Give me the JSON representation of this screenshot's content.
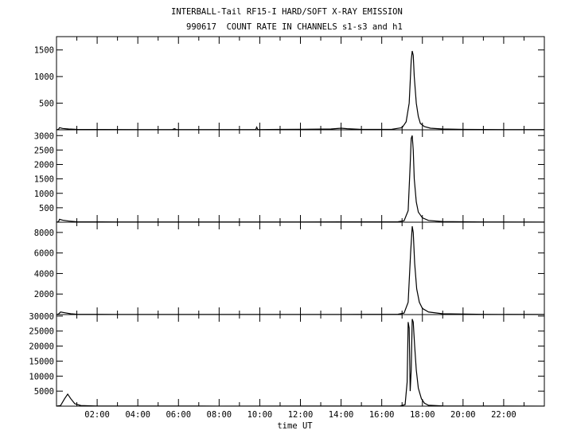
{
  "header": {
    "title_line1": "INTERBALL-Tail RF15-I HARD/SOFT X-RAY EMISSION",
    "title_line2": "990617  COUNT RATE IN CHANNELS s1-s3 and h1"
  },
  "chart_data": {
    "type": "line",
    "xlabel": "time UT",
    "xlim": [
      0,
      24
    ],
    "x_tick_labels": [
      "02:00",
      "04:00",
      "06:00",
      "08:00",
      "10:00",
      "12:00",
      "14:00",
      "16:00",
      "18:00",
      "20:00",
      "22:00"
    ],
    "x_tick_hours": [
      2,
      4,
      6,
      8,
      10,
      12,
      14,
      16,
      18,
      20,
      22
    ],
    "panels": [
      {
        "channel": "s1",
        "ylim": [
          0,
          1750
        ],
        "y_ticks": [
          500,
          1000,
          1500
        ],
        "y_tick_labels": [
          "500",
          "1000",
          "1500"
        ],
        "points": [
          [
            0,
            0
          ],
          [
            0.1,
            10
          ],
          [
            0.15,
            40
          ],
          [
            0.3,
            25
          ],
          [
            0.6,
            15
          ],
          [
            1,
            8
          ],
          [
            2,
            6
          ],
          [
            4,
            5
          ],
          [
            5.7,
            4
          ],
          [
            5.8,
            20
          ],
          [
            5.9,
            4
          ],
          [
            8,
            5
          ],
          [
            9.8,
            5
          ],
          [
            9.85,
            50
          ],
          [
            9.9,
            5
          ],
          [
            11,
            8
          ],
          [
            12,
            10
          ],
          [
            13.5,
            15
          ],
          [
            14,
            30
          ],
          [
            14.3,
            20
          ],
          [
            15,
            8
          ],
          [
            16.5,
            10
          ],
          [
            17.0,
            40
          ],
          [
            17.2,
            150
          ],
          [
            17.35,
            500
          ],
          [
            17.45,
            1300
          ],
          [
            17.5,
            1480
          ],
          [
            17.55,
            1400
          ],
          [
            17.6,
            1000
          ],
          [
            17.7,
            500
          ],
          [
            17.8,
            250
          ],
          [
            17.9,
            120
          ],
          [
            18.1,
            60
          ],
          [
            18.4,
            30
          ],
          [
            19,
            15
          ],
          [
            20,
            8
          ],
          [
            22,
            5
          ],
          [
            24,
            5
          ]
        ]
      },
      {
        "channel": "s2",
        "ylim": [
          0,
          3200
        ],
        "y_ticks": [
          500,
          1000,
          1500,
          2000,
          2500,
          3000
        ],
        "y_tick_labels": [
          "500",
          "1000",
          "1500",
          "2000",
          "2500",
          "3000"
        ],
        "points": [
          [
            0,
            0
          ],
          [
            0.1,
            20
          ],
          [
            0.15,
            100
          ],
          [
            0.3,
            70
          ],
          [
            0.6,
            40
          ],
          [
            1,
            15
          ],
          [
            3,
            8
          ],
          [
            6,
            8
          ],
          [
            10,
            8
          ],
          [
            14,
            10
          ],
          [
            16.8,
            15
          ],
          [
            17.1,
            50
          ],
          [
            17.3,
            400
          ],
          [
            17.4,
            2000
          ],
          [
            17.45,
            2900
          ],
          [
            17.5,
            3000
          ],
          [
            17.55,
            2500
          ],
          [
            17.6,
            1500
          ],
          [
            17.7,
            700
          ],
          [
            17.8,
            350
          ],
          [
            18,
            150
          ],
          [
            18.3,
            60
          ],
          [
            19,
            20
          ],
          [
            21,
            8
          ],
          [
            24,
            5
          ]
        ]
      },
      {
        "channel": "s3",
        "ylim": [
          0,
          9000
        ],
        "y_ticks": [
          2000,
          4000,
          6000,
          8000
        ],
        "y_tick_labels": [
          "2000",
          "4000",
          "6000",
          "8000"
        ],
        "points": [
          [
            0,
            0
          ],
          [
            0.1,
            50
          ],
          [
            0.2,
            250
          ],
          [
            0.4,
            180
          ],
          [
            0.7,
            80
          ],
          [
            1,
            30
          ],
          [
            3,
            15
          ],
          [
            8,
            12
          ],
          [
            14,
            15
          ],
          [
            16.8,
            30
          ],
          [
            17.1,
            150
          ],
          [
            17.3,
            1200
          ],
          [
            17.42,
            6000
          ],
          [
            17.5,
            8600
          ],
          [
            17.55,
            8000
          ],
          [
            17.62,
            5000
          ],
          [
            17.72,
            2500
          ],
          [
            17.85,
            1200
          ],
          [
            18,
            600
          ],
          [
            18.3,
            250
          ],
          [
            19,
            80
          ],
          [
            21,
            20
          ],
          [
            24,
            10
          ]
        ]
      },
      {
        "channel": "h1",
        "ylim": [
          0,
          30500
        ],
        "y_ticks": [
          5000,
          10000,
          15000,
          20000,
          25000,
          30000
        ],
        "y_tick_labels": [
          "5000",
          "10000",
          "15000",
          "20000",
          "25000",
          "30000"
        ],
        "points": [
          [
            0,
            0
          ],
          [
            0.2,
            200
          ],
          [
            0.4,
            2500
          ],
          [
            0.55,
            4000
          ],
          [
            0.7,
            2500
          ],
          [
            0.9,
            800
          ],
          [
            1.2,
            200
          ],
          [
            2,
            50
          ],
          [
            8,
            20
          ],
          [
            16.9,
            50
          ],
          [
            17.15,
            500
          ],
          [
            17.25,
            8000
          ],
          [
            17.3,
            28000
          ],
          [
            17.35,
            26000
          ],
          [
            17.4,
            5000
          ],
          [
            17.45,
            12000
          ],
          [
            17.5,
            29000
          ],
          [
            17.55,
            28000
          ],
          [
            17.62,
            20000
          ],
          [
            17.7,
            12000
          ],
          [
            17.8,
            6000
          ],
          [
            17.95,
            2500
          ],
          [
            18.1,
            1000
          ],
          [
            18.3,
            300
          ],
          [
            19,
            80
          ],
          [
            24,
            20
          ]
        ]
      }
    ]
  }
}
